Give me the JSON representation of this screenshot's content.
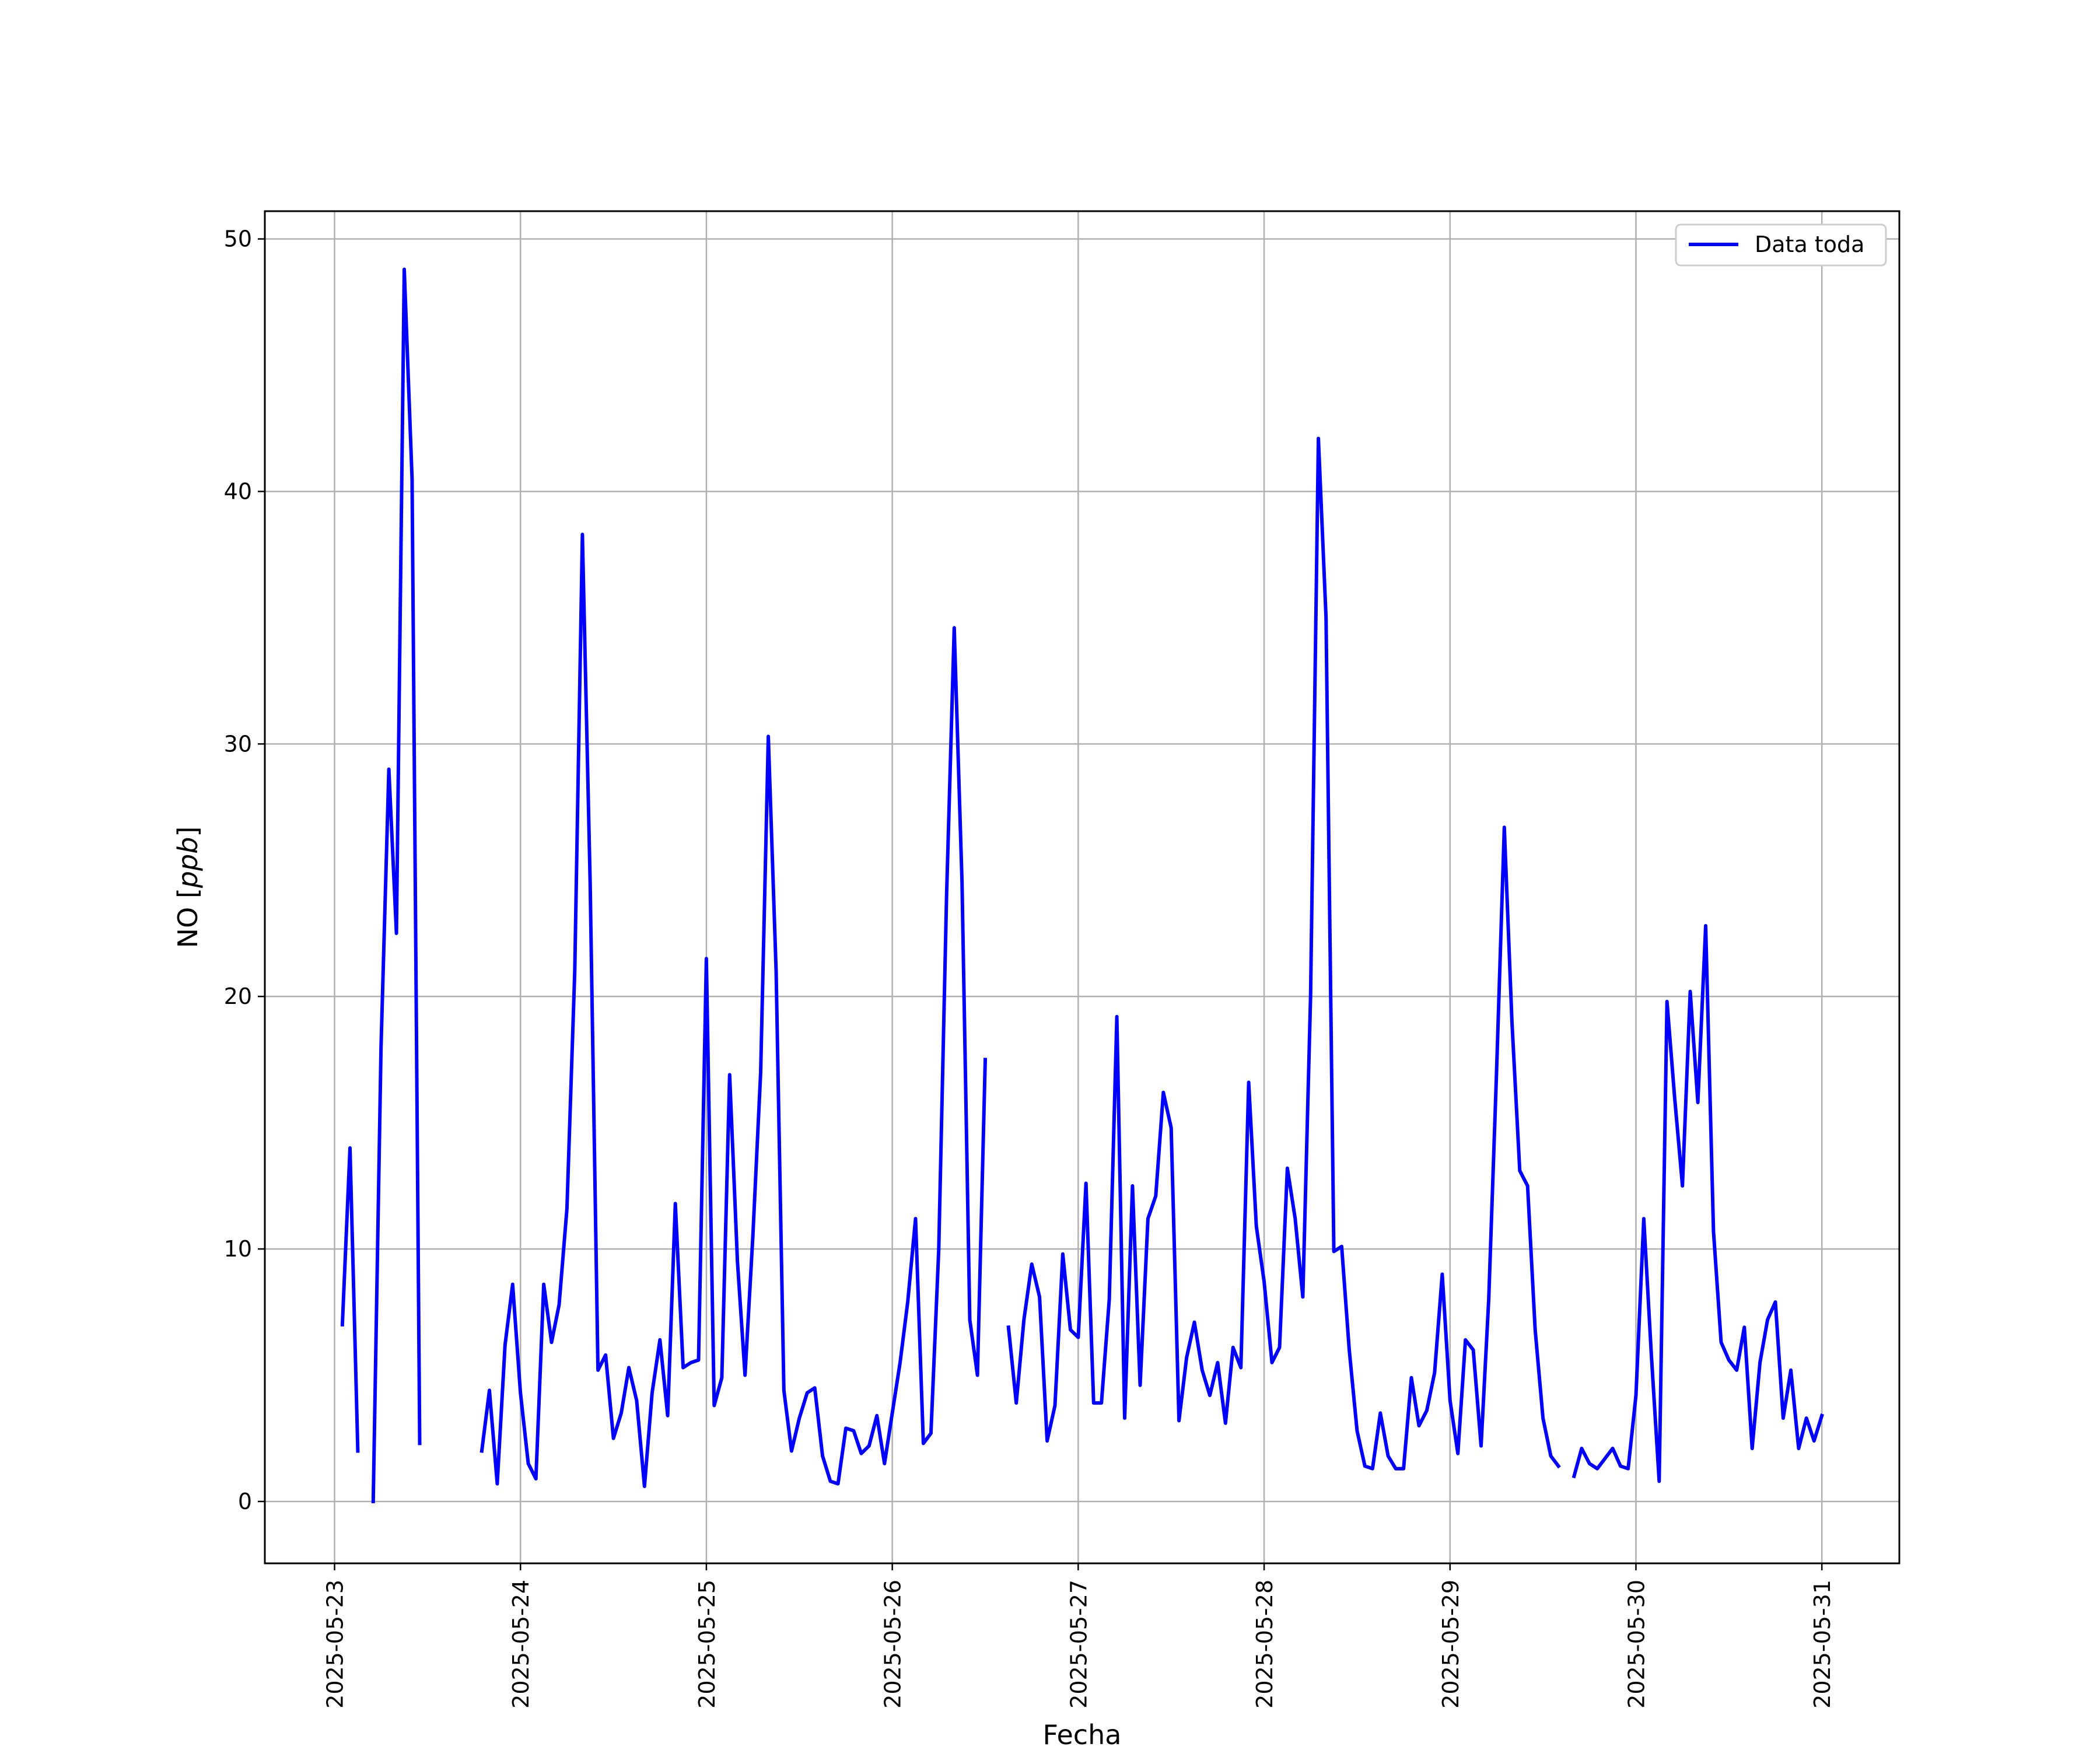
{
  "chart_data": {
    "type": "line",
    "title": "",
    "xlabel": "Fecha",
    "ylabel_prefix": "NO [",
    "ylabel_unit": "ppb",
    "ylabel_suffix": "]",
    "x_ticks": [
      "2025-05-23",
      "2025-05-24",
      "2025-05-25",
      "2025-05-26",
      "2025-05-27",
      "2025-05-28",
      "2025-05-29",
      "2025-05-30",
      "2025-05-31"
    ],
    "y_ticks": [
      0,
      10,
      20,
      30,
      40,
      50
    ],
    "xlim": [
      "2025-05-22T15:00",
      "2025-05-31T10:00"
    ],
    "ylim": [
      -2.45,
      51.1
    ],
    "grid": true,
    "legend": "upper-right",
    "series": [
      {
        "name": "Data toda",
        "color": "#0000ff",
        "x_format": "day offset from 2025-05-23 00:00",
        "points": [
          [
            0.042,
            7.0
          ],
          [
            0.083,
            14.0
          ],
          [
            0.125,
            2.0
          ],
          [
            0.167,
            null
          ],
          [
            0.208,
            0.0
          ],
          [
            0.25,
            18.0
          ],
          [
            0.292,
            29.0
          ],
          [
            0.333,
            22.5
          ],
          [
            0.375,
            48.8
          ],
          [
            0.417,
            40.5
          ],
          [
            0.458,
            2.3
          ],
          [
            0.5,
            null
          ],
          [
            0.542,
            null
          ],
          [
            0.583,
            null
          ],
          [
            0.625,
            null
          ],
          [
            0.667,
            null
          ],
          [
            0.708,
            null
          ],
          [
            0.75,
            null
          ],
          [
            0.792,
            2.0
          ],
          [
            0.833,
            4.4
          ],
          [
            0.875,
            0.7
          ],
          [
            0.917,
            6.2
          ],
          [
            0.958,
            8.6
          ],
          [
            1.0,
            4.3
          ],
          [
            1.042,
            1.5
          ],
          [
            1.083,
            0.9
          ],
          [
            1.125,
            8.6
          ],
          [
            1.167,
            6.3
          ],
          [
            1.208,
            7.8
          ],
          [
            1.25,
            11.6
          ],
          [
            1.292,
            21.0
          ],
          [
            1.333,
            38.3
          ],
          [
            1.375,
            24.5
          ],
          [
            1.417,
            5.2
          ],
          [
            1.458,
            5.8
          ],
          [
            1.5,
            2.5
          ],
          [
            1.542,
            3.5
          ],
          [
            1.583,
            5.3
          ],
          [
            1.625,
            4.0
          ],
          [
            1.667,
            0.6
          ],
          [
            1.708,
            4.3
          ],
          [
            1.75,
            6.4
          ],
          [
            1.792,
            3.4
          ],
          [
            1.833,
            11.8
          ],
          [
            1.875,
            5.3
          ],
          [
            1.917,
            5.5
          ],
          [
            1.958,
            5.6
          ],
          [
            2.0,
            21.5
          ],
          [
            2.042,
            3.8
          ],
          [
            2.083,
            4.9
          ],
          [
            2.125,
            16.9
          ],
          [
            2.167,
            9.5
          ],
          [
            2.208,
            5.0
          ],
          [
            2.25,
            10.5
          ],
          [
            2.292,
            17.0
          ],
          [
            2.333,
            30.3
          ],
          [
            2.375,
            21.0
          ],
          [
            2.417,
            4.4
          ],
          [
            2.458,
            2.0
          ],
          [
            2.5,
            3.3
          ],
          [
            2.542,
            4.3
          ],
          [
            2.583,
            4.5
          ],
          [
            2.625,
            1.8
          ],
          [
            2.667,
            0.8
          ],
          [
            2.708,
            0.7
          ],
          [
            2.75,
            2.9
          ],
          [
            2.792,
            2.8
          ],
          [
            2.833,
            1.9
          ],
          [
            2.875,
            2.2
          ],
          [
            2.917,
            3.4
          ],
          [
            2.958,
            1.5
          ],
          [
            3.0,
            3.5
          ],
          [
            3.042,
            5.5
          ],
          [
            3.083,
            7.9
          ],
          [
            3.125,
            11.2
          ],
          [
            3.167,
            2.3
          ],
          [
            3.208,
            2.7
          ],
          [
            3.25,
            10.0
          ],
          [
            3.292,
            24.0
          ],
          [
            3.333,
            34.6
          ],
          [
            3.375,
            24.5
          ],
          [
            3.417,
            7.2
          ],
          [
            3.458,
            5.0
          ],
          [
            3.5,
            17.5
          ],
          [
            3.542,
            null
          ],
          [
            3.583,
            null
          ],
          [
            3.625,
            6.9
          ],
          [
            3.667,
            3.9
          ],
          [
            3.708,
            7.2
          ],
          [
            3.75,
            9.4
          ],
          [
            3.792,
            8.1
          ],
          [
            3.833,
            2.4
          ],
          [
            3.875,
            3.8
          ],
          [
            3.917,
            9.8
          ],
          [
            3.958,
            6.8
          ],
          [
            4.0,
            6.5
          ],
          [
            4.042,
            12.6
          ],
          [
            4.083,
            3.9
          ],
          [
            4.125,
            3.9
          ],
          [
            4.167,
            8.0
          ],
          [
            4.208,
            19.2
          ],
          [
            4.25,
            3.3
          ],
          [
            4.292,
            12.5
          ],
          [
            4.333,
            4.6
          ],
          [
            4.375,
            11.2
          ],
          [
            4.417,
            12.1
          ],
          [
            4.458,
            16.2
          ],
          [
            4.5,
            14.8
          ],
          [
            4.542,
            3.2
          ],
          [
            4.583,
            5.7
          ],
          [
            4.625,
            7.1
          ],
          [
            4.667,
            5.2
          ],
          [
            4.708,
            4.2
          ],
          [
            4.75,
            5.5
          ],
          [
            4.792,
            3.1
          ],
          [
            4.833,
            6.1
          ],
          [
            4.875,
            5.3
          ],
          [
            4.917,
            16.6
          ],
          [
            4.958,
            10.9
          ],
          [
            5.0,
            8.7
          ],
          [
            5.042,
            5.5
          ],
          [
            5.083,
            6.1
          ],
          [
            5.125,
            13.2
          ],
          [
            5.167,
            11.2
          ],
          [
            5.208,
            8.1
          ],
          [
            5.25,
            20.0
          ],
          [
            5.292,
            42.1
          ],
          [
            5.333,
            35.0
          ],
          [
            5.375,
            9.9
          ],
          [
            5.417,
            10.1
          ],
          [
            5.458,
            6.0
          ],
          [
            5.5,
            2.8
          ],
          [
            5.542,
            1.4
          ],
          [
            5.583,
            1.3
          ],
          [
            5.625,
            3.5
          ],
          [
            5.667,
            1.8
          ],
          [
            5.708,
            1.3
          ],
          [
            5.75,
            1.3
          ],
          [
            5.792,
            4.9
          ],
          [
            5.833,
            3.0
          ],
          [
            5.875,
            3.6
          ],
          [
            5.917,
            5.1
          ],
          [
            5.958,
            9.0
          ],
          [
            6.0,
            4.0
          ],
          [
            6.042,
            1.9
          ],
          [
            6.083,
            6.4
          ],
          [
            6.125,
            6.0
          ],
          [
            6.167,
            2.2
          ],
          [
            6.208,
            8.0
          ],
          [
            6.25,
            17.0
          ],
          [
            6.292,
            26.7
          ],
          [
            6.333,
            19.0
          ],
          [
            6.375,
            13.1
          ],
          [
            6.417,
            12.5
          ],
          [
            6.458,
            6.8
          ],
          [
            6.5,
            3.3
          ],
          [
            6.542,
            1.8
          ],
          [
            6.583,
            1.4
          ],
          [
            6.625,
            null
          ],
          [
            6.667,
            1.0
          ],
          [
            6.708,
            2.1
          ],
          [
            6.75,
            1.5
          ],
          [
            6.792,
            1.3
          ],
          [
            6.833,
            1.7
          ],
          [
            6.875,
            2.1
          ],
          [
            6.917,
            1.4
          ],
          [
            6.958,
            1.3
          ],
          [
            7.0,
            4.2
          ],
          [
            7.042,
            11.2
          ],
          [
            7.083,
            5.8
          ],
          [
            7.125,
            0.8
          ],
          [
            7.167,
            19.8
          ],
          [
            7.208,
            16.0
          ],
          [
            7.25,
            12.5
          ],
          [
            7.292,
            20.2
          ],
          [
            7.333,
            15.8
          ],
          [
            7.375,
            22.8
          ],
          [
            7.417,
            10.7
          ],
          [
            7.458,
            6.3
          ],
          [
            7.5,
            5.6
          ],
          [
            7.542,
            5.2
          ],
          [
            7.583,
            6.9
          ],
          [
            7.625,
            2.1
          ],
          [
            7.667,
            5.5
          ],
          [
            7.708,
            7.2
          ],
          [
            7.75,
            7.9
          ],
          [
            7.792,
            3.3
          ],
          [
            7.833,
            5.2
          ],
          [
            7.875,
            2.1
          ],
          [
            7.917,
            3.3
          ],
          [
            7.958,
            2.4
          ],
          [
            8.0,
            3.4
          ]
        ]
      }
    ]
  }
}
